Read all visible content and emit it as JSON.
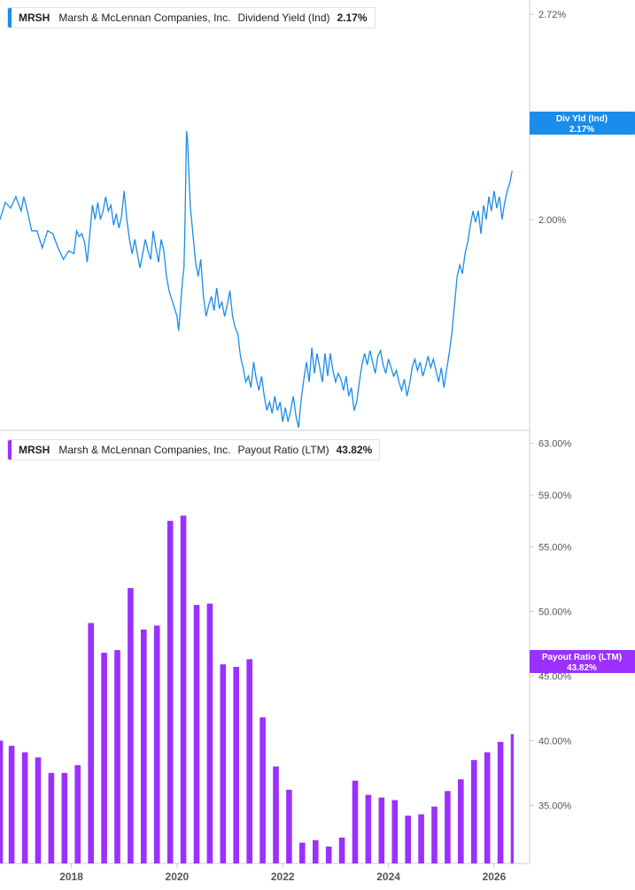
{
  "colors": {
    "yield": "#1a8ceb",
    "payout": "#9b30ff",
    "axis": "#cccccc"
  },
  "top_legend": {
    "ticker": "MRSH",
    "company": "Marsh & McLennan Companies, Inc.",
    "metric": "Dividend Yield (Ind)",
    "value": "2.17%"
  },
  "bottom_legend": {
    "ticker": "MRSH",
    "company": "Marsh & McLennan Companies, Inc.",
    "metric": "Payout Ratio (LTM)",
    "value": "43.82%"
  },
  "top_badge": {
    "line1": "Div Yld (Ind)",
    "line2": "2.17%"
  },
  "bottom_badge": {
    "line1": "Payout Ratio (LTM)",
    "line2": "43.82%"
  },
  "chart_data": [
    {
      "type": "line",
      "series": [
        {
          "name": "Dividend Yield (Ind)",
          "unit": "%"
        }
      ],
      "x_range": [
        2016.65,
        2026.37
      ],
      "y_range": [
        1.26,
        2.77
      ],
      "yticks": [
        2.72,
        2.0
      ],
      "ytick_labels": [
        "2.72%",
        "2.00%"
      ],
      "points": [
        [
          2016.65,
          2.0
        ],
        [
          2016.75,
          2.06
        ],
        [
          2016.85,
          2.04
        ],
        [
          2016.95,
          2.08
        ],
        [
          2017.05,
          2.03
        ],
        [
          2017.1,
          2.08
        ],
        [
          2017.18,
          2.02
        ],
        [
          2017.25,
          1.96
        ],
        [
          2017.35,
          1.96
        ],
        [
          2017.45,
          1.9
        ],
        [
          2017.55,
          1.96
        ],
        [
          2017.65,
          1.95
        ],
        [
          2017.75,
          1.9
        ],
        [
          2017.85,
          1.86
        ],
        [
          2017.95,
          1.89
        ],
        [
          2018.05,
          1.88
        ],
        [
          2018.1,
          1.96
        ],
        [
          2018.15,
          1.94
        ],
        [
          2018.2,
          1.95
        ],
        [
          2018.25,
          1.92
        ],
        [
          2018.3,
          1.85
        ],
        [
          2018.35,
          1.95
        ],
        [
          2018.4,
          2.05
        ],
        [
          2018.45,
          2.0
        ],
        [
          2018.5,
          2.06
        ],
        [
          2018.55,
          2.0
        ],
        [
          2018.6,
          2.03
        ],
        [
          2018.65,
          2.08
        ],
        [
          2018.7,
          2.03
        ],
        [
          2018.75,
          2.05
        ],
        [
          2018.8,
          1.98
        ],
        [
          2018.85,
          2.02
        ],
        [
          2018.9,
          1.97
        ],
        [
          2018.95,
          2.01
        ],
        [
          2019.0,
          2.1
        ],
        [
          2019.05,
          2.0
        ],
        [
          2019.1,
          1.93
        ],
        [
          2019.15,
          1.88
        ],
        [
          2019.2,
          1.93
        ],
        [
          2019.25,
          1.88
        ],
        [
          2019.3,
          1.83
        ],
        [
          2019.35,
          1.88
        ],
        [
          2019.4,
          1.93
        ],
        [
          2019.45,
          1.89
        ],
        [
          2019.5,
          1.86
        ],
        [
          2019.55,
          1.96
        ],
        [
          2019.6,
          1.9
        ],
        [
          2019.65,
          1.85
        ],
        [
          2019.7,
          1.93
        ],
        [
          2019.75,
          1.89
        ],
        [
          2019.8,
          1.8
        ],
        [
          2019.85,
          1.75
        ],
        [
          2019.9,
          1.72
        ],
        [
          2019.95,
          1.69
        ],
        [
          2020.0,
          1.66
        ],
        [
          2020.03,
          1.61
        ],
        [
          2020.06,
          1.68
        ],
        [
          2020.1,
          1.78
        ],
        [
          2020.13,
          1.83
        ],
        [
          2020.15,
          1.97
        ],
        [
          2020.18,
          2.31
        ],
        [
          2020.2,
          2.28
        ],
        [
          2020.22,
          2.18
        ],
        [
          2020.25,
          2.05
        ],
        [
          2020.3,
          1.95
        ],
        [
          2020.35,
          1.85
        ],
        [
          2020.4,
          1.8
        ],
        [
          2020.45,
          1.86
        ],
        [
          2020.5,
          1.73
        ],
        [
          2020.55,
          1.66
        ],
        [
          2020.6,
          1.7
        ],
        [
          2020.65,
          1.73
        ],
        [
          2020.7,
          1.68
        ],
        [
          2020.75,
          1.76
        ],
        [
          2020.8,
          1.69
        ],
        [
          2020.85,
          1.71
        ],
        [
          2020.9,
          1.66
        ],
        [
          2020.95,
          1.7
        ],
        [
          2021.0,
          1.75
        ],
        [
          2021.05,
          1.66
        ],
        [
          2021.1,
          1.62
        ],
        [
          2021.15,
          1.6
        ],
        [
          2021.2,
          1.52
        ],
        [
          2021.25,
          1.48
        ],
        [
          2021.3,
          1.43
        ],
        [
          2021.35,
          1.45
        ],
        [
          2021.4,
          1.41
        ],
        [
          2021.45,
          1.5
        ],
        [
          2021.5,
          1.44
        ],
        [
          2021.55,
          1.4
        ],
        [
          2021.6,
          1.45
        ],
        [
          2021.65,
          1.38
        ],
        [
          2021.7,
          1.33
        ],
        [
          2021.75,
          1.36
        ],
        [
          2021.8,
          1.32
        ],
        [
          2021.85,
          1.38
        ],
        [
          2021.9,
          1.33
        ],
        [
          2021.95,
          1.36
        ],
        [
          2022.0,
          1.29
        ],
        [
          2022.05,
          1.34
        ],
        [
          2022.1,
          1.29
        ],
        [
          2022.15,
          1.33
        ],
        [
          2022.2,
          1.38
        ],
        [
          2022.25,
          1.31
        ],
        [
          2022.3,
          1.27
        ],
        [
          2022.35,
          1.37
        ],
        [
          2022.4,
          1.44
        ],
        [
          2022.45,
          1.5
        ],
        [
          2022.5,
          1.43
        ],
        [
          2022.55,
          1.55
        ],
        [
          2022.6,
          1.46
        ],
        [
          2022.65,
          1.53
        ],
        [
          2022.7,
          1.48
        ],
        [
          2022.75,
          1.43
        ],
        [
          2022.8,
          1.53
        ],
        [
          2022.85,
          1.45
        ],
        [
          2022.9,
          1.53
        ],
        [
          2022.95,
          1.47
        ],
        [
          2023.0,
          1.43
        ],
        [
          2023.05,
          1.46
        ],
        [
          2023.1,
          1.44
        ],
        [
          2023.15,
          1.4
        ],
        [
          2023.2,
          1.45
        ],
        [
          2023.25,
          1.38
        ],
        [
          2023.3,
          1.41
        ],
        [
          2023.35,
          1.33
        ],
        [
          2023.4,
          1.36
        ],
        [
          2023.45,
          1.43
        ],
        [
          2023.5,
          1.49
        ],
        [
          2023.55,
          1.53
        ],
        [
          2023.6,
          1.49
        ],
        [
          2023.65,
          1.54
        ],
        [
          2023.7,
          1.5
        ],
        [
          2023.75,
          1.46
        ],
        [
          2023.8,
          1.52
        ],
        [
          2023.85,
          1.54
        ],
        [
          2023.9,
          1.49
        ],
        [
          2023.95,
          1.46
        ],
        [
          2024.0,
          1.51
        ],
        [
          2024.05,
          1.48
        ],
        [
          2024.1,
          1.45
        ],
        [
          2024.15,
          1.47
        ],
        [
          2024.2,
          1.43
        ],
        [
          2024.25,
          1.4
        ],
        [
          2024.3,
          1.44
        ],
        [
          2024.35,
          1.38
        ],
        [
          2024.4,
          1.42
        ],
        [
          2024.45,
          1.48
        ],
        [
          2024.5,
          1.51
        ],
        [
          2024.55,
          1.47
        ],
        [
          2024.6,
          1.5
        ],
        [
          2024.65,
          1.45
        ],
        [
          2024.7,
          1.48
        ],
        [
          2024.75,
          1.52
        ],
        [
          2024.8,
          1.48
        ],
        [
          2024.85,
          1.51
        ],
        [
          2024.9,
          1.47
        ],
        [
          2024.95,
          1.43
        ],
        [
          2025.0,
          1.48
        ],
        [
          2025.05,
          1.41
        ],
        [
          2025.1,
          1.47
        ],
        [
          2025.15,
          1.53
        ],
        [
          2025.2,
          1.6
        ],
        [
          2025.25,
          1.7
        ],
        [
          2025.3,
          1.8
        ],
        [
          2025.35,
          1.84
        ],
        [
          2025.4,
          1.81
        ],
        [
          2025.45,
          1.88
        ],
        [
          2025.5,
          1.92
        ],
        [
          2025.55,
          1.98
        ],
        [
          2025.6,
          2.03
        ],
        [
          2025.65,
          1.99
        ],
        [
          2025.7,
          2.03
        ],
        [
          2025.75,
          1.95
        ],
        [
          2025.8,
          2.05
        ],
        [
          2025.85,
          2.0
        ],
        [
          2025.9,
          2.08
        ],
        [
          2025.95,
          2.03
        ],
        [
          2026.0,
          2.1
        ],
        [
          2026.05,
          2.04
        ],
        [
          2026.1,
          2.08
        ],
        [
          2026.15,
          2.0
        ],
        [
          2026.2,
          2.06
        ],
        [
          2026.25,
          2.1
        ],
        [
          2026.3,
          2.13
        ],
        [
          2026.34,
          2.17
        ]
      ]
    },
    {
      "type": "bar",
      "series": [
        {
          "name": "Payout Ratio (LTM)",
          "unit": "%"
        }
      ],
      "x_range": [
        2016.65,
        2026.37
      ],
      "y_range": [
        30.5,
        64.0
      ],
      "yticks": [
        63,
        59,
        55,
        50,
        45,
        40,
        35
      ],
      "ytick_labels": [
        "63.00%",
        "59.00%",
        "55.00%",
        "50.00%",
        "45.00%",
        "40.00%",
        "35.00%"
      ],
      "xticks": [
        2018,
        2020,
        2022,
        2024,
        2026
      ],
      "xtick_labels": [
        "2018",
        "2020",
        "2022",
        "2024",
        "2026"
      ],
      "bar_width_years": 0.2,
      "bars": [
        [
          2016.65,
          40.0
        ],
        [
          2016.87,
          39.6
        ],
        [
          2017.12,
          39.1
        ],
        [
          2017.37,
          38.7
        ],
        [
          2017.62,
          37.5
        ],
        [
          2017.87,
          37.5
        ],
        [
          2018.12,
          38.1
        ],
        [
          2018.37,
          49.1
        ],
        [
          2018.62,
          46.8
        ],
        [
          2018.87,
          47.0
        ],
        [
          2019.12,
          51.8
        ],
        [
          2019.37,
          48.6
        ],
        [
          2019.62,
          48.9
        ],
        [
          2019.87,
          57.0
        ],
        [
          2020.12,
          57.4
        ],
        [
          2020.37,
          50.5
        ],
        [
          2020.62,
          50.6
        ],
        [
          2020.87,
          45.9
        ],
        [
          2021.12,
          45.7
        ],
        [
          2021.37,
          46.3
        ],
        [
          2021.62,
          41.8
        ],
        [
          2021.87,
          38.0
        ],
        [
          2022.12,
          36.2
        ],
        [
          2022.37,
          32.1
        ],
        [
          2022.62,
          32.3
        ],
        [
          2022.87,
          31.8
        ],
        [
          2023.12,
          32.5
        ],
        [
          2023.37,
          36.9
        ],
        [
          2023.62,
          35.8
        ],
        [
          2023.87,
          35.6
        ],
        [
          2024.12,
          35.4
        ],
        [
          2024.37,
          34.2
        ],
        [
          2024.62,
          34.3
        ],
        [
          2024.87,
          34.9
        ],
        [
          2025.12,
          36.1
        ],
        [
          2025.37,
          37.0
        ],
        [
          2025.62,
          38.5
        ],
        [
          2025.87,
          39.1
        ],
        [
          2026.12,
          39.9
        ],
        [
          2026.37,
          40.5
        ],
        [
          2026.62,
          43.82
        ]
      ]
    }
  ]
}
